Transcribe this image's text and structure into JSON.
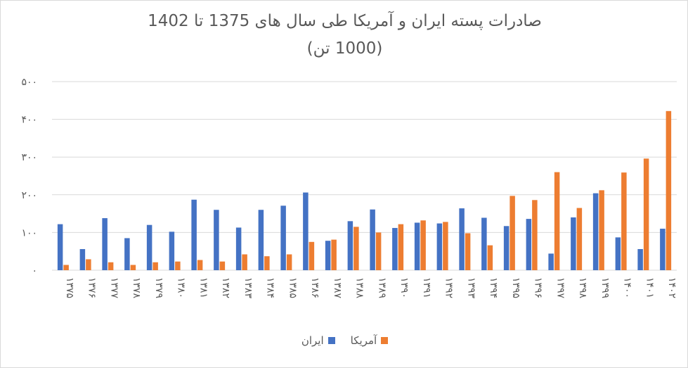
{
  "chart_data": {
    "type": "bar",
    "title": "صادرات پسته ایران و آمریکا طی سال های 1375 تا 1402",
    "subtitle": "(1000 تن)",
    "categories": [
      "۱۳۷۵",
      "۱۳۷۶",
      "۱۳۷۷",
      "۱۳۷۸",
      "۱۳۷۹",
      "۱۳۸۰",
      "۱۳۸۱",
      "۱۳۸۲",
      "۱۳۸۳",
      "۱۳۸۴",
      "۱۳۸۵",
      "۱۳۸۶",
      "۱۳۸۷",
      "۱۳۸۸",
      "۱۳۸۹",
      "۱۳۹۰",
      "۱۳۹۱",
      "۱۳۹۲",
      "۱۳۹۳",
      "۱۳۹۴",
      "۱۳۹۵",
      "۱۳۹۶",
      "۱۳۹۷",
      "۱۳۹۸",
      "۱۳۹۹",
      "۱۴۰۰",
      "۱۴۰۱",
      "۱۴۰۲"
    ],
    "series": [
      {
        "name": "ایران",
        "color": "#4472c4",
        "values": [
          122,
          56,
          138,
          85,
          120,
          102,
          187,
          160,
          113,
          160,
          171,
          206,
          78,
          130,
          161,
          112,
          126,
          124,
          164,
          139,
          117,
          136,
          44,
          140,
          204,
          87,
          56,
          110
        ]
      },
      {
        "name": "آمریکا",
        "color": "#ed7d31",
        "values": [
          14,
          29,
          21,
          14,
          21,
          23,
          27,
          23,
          42,
          37,
          42,
          75,
          81,
          115,
          100,
          122,
          132,
          128,
          98,
          66,
          197,
          186,
          260,
          165,
          212,
          259,
          296,
          422
        ]
      }
    ],
    "yticks": [
      "۰",
      "۱۰۰",
      "۲۰۰",
      "۳۰۰",
      "۴۰۰",
      "۵۰۰"
    ],
    "ylim": [
      0,
      500
    ],
    "grid": true,
    "legend_position": "bottom",
    "xlabel": "",
    "ylabel": ""
  }
}
